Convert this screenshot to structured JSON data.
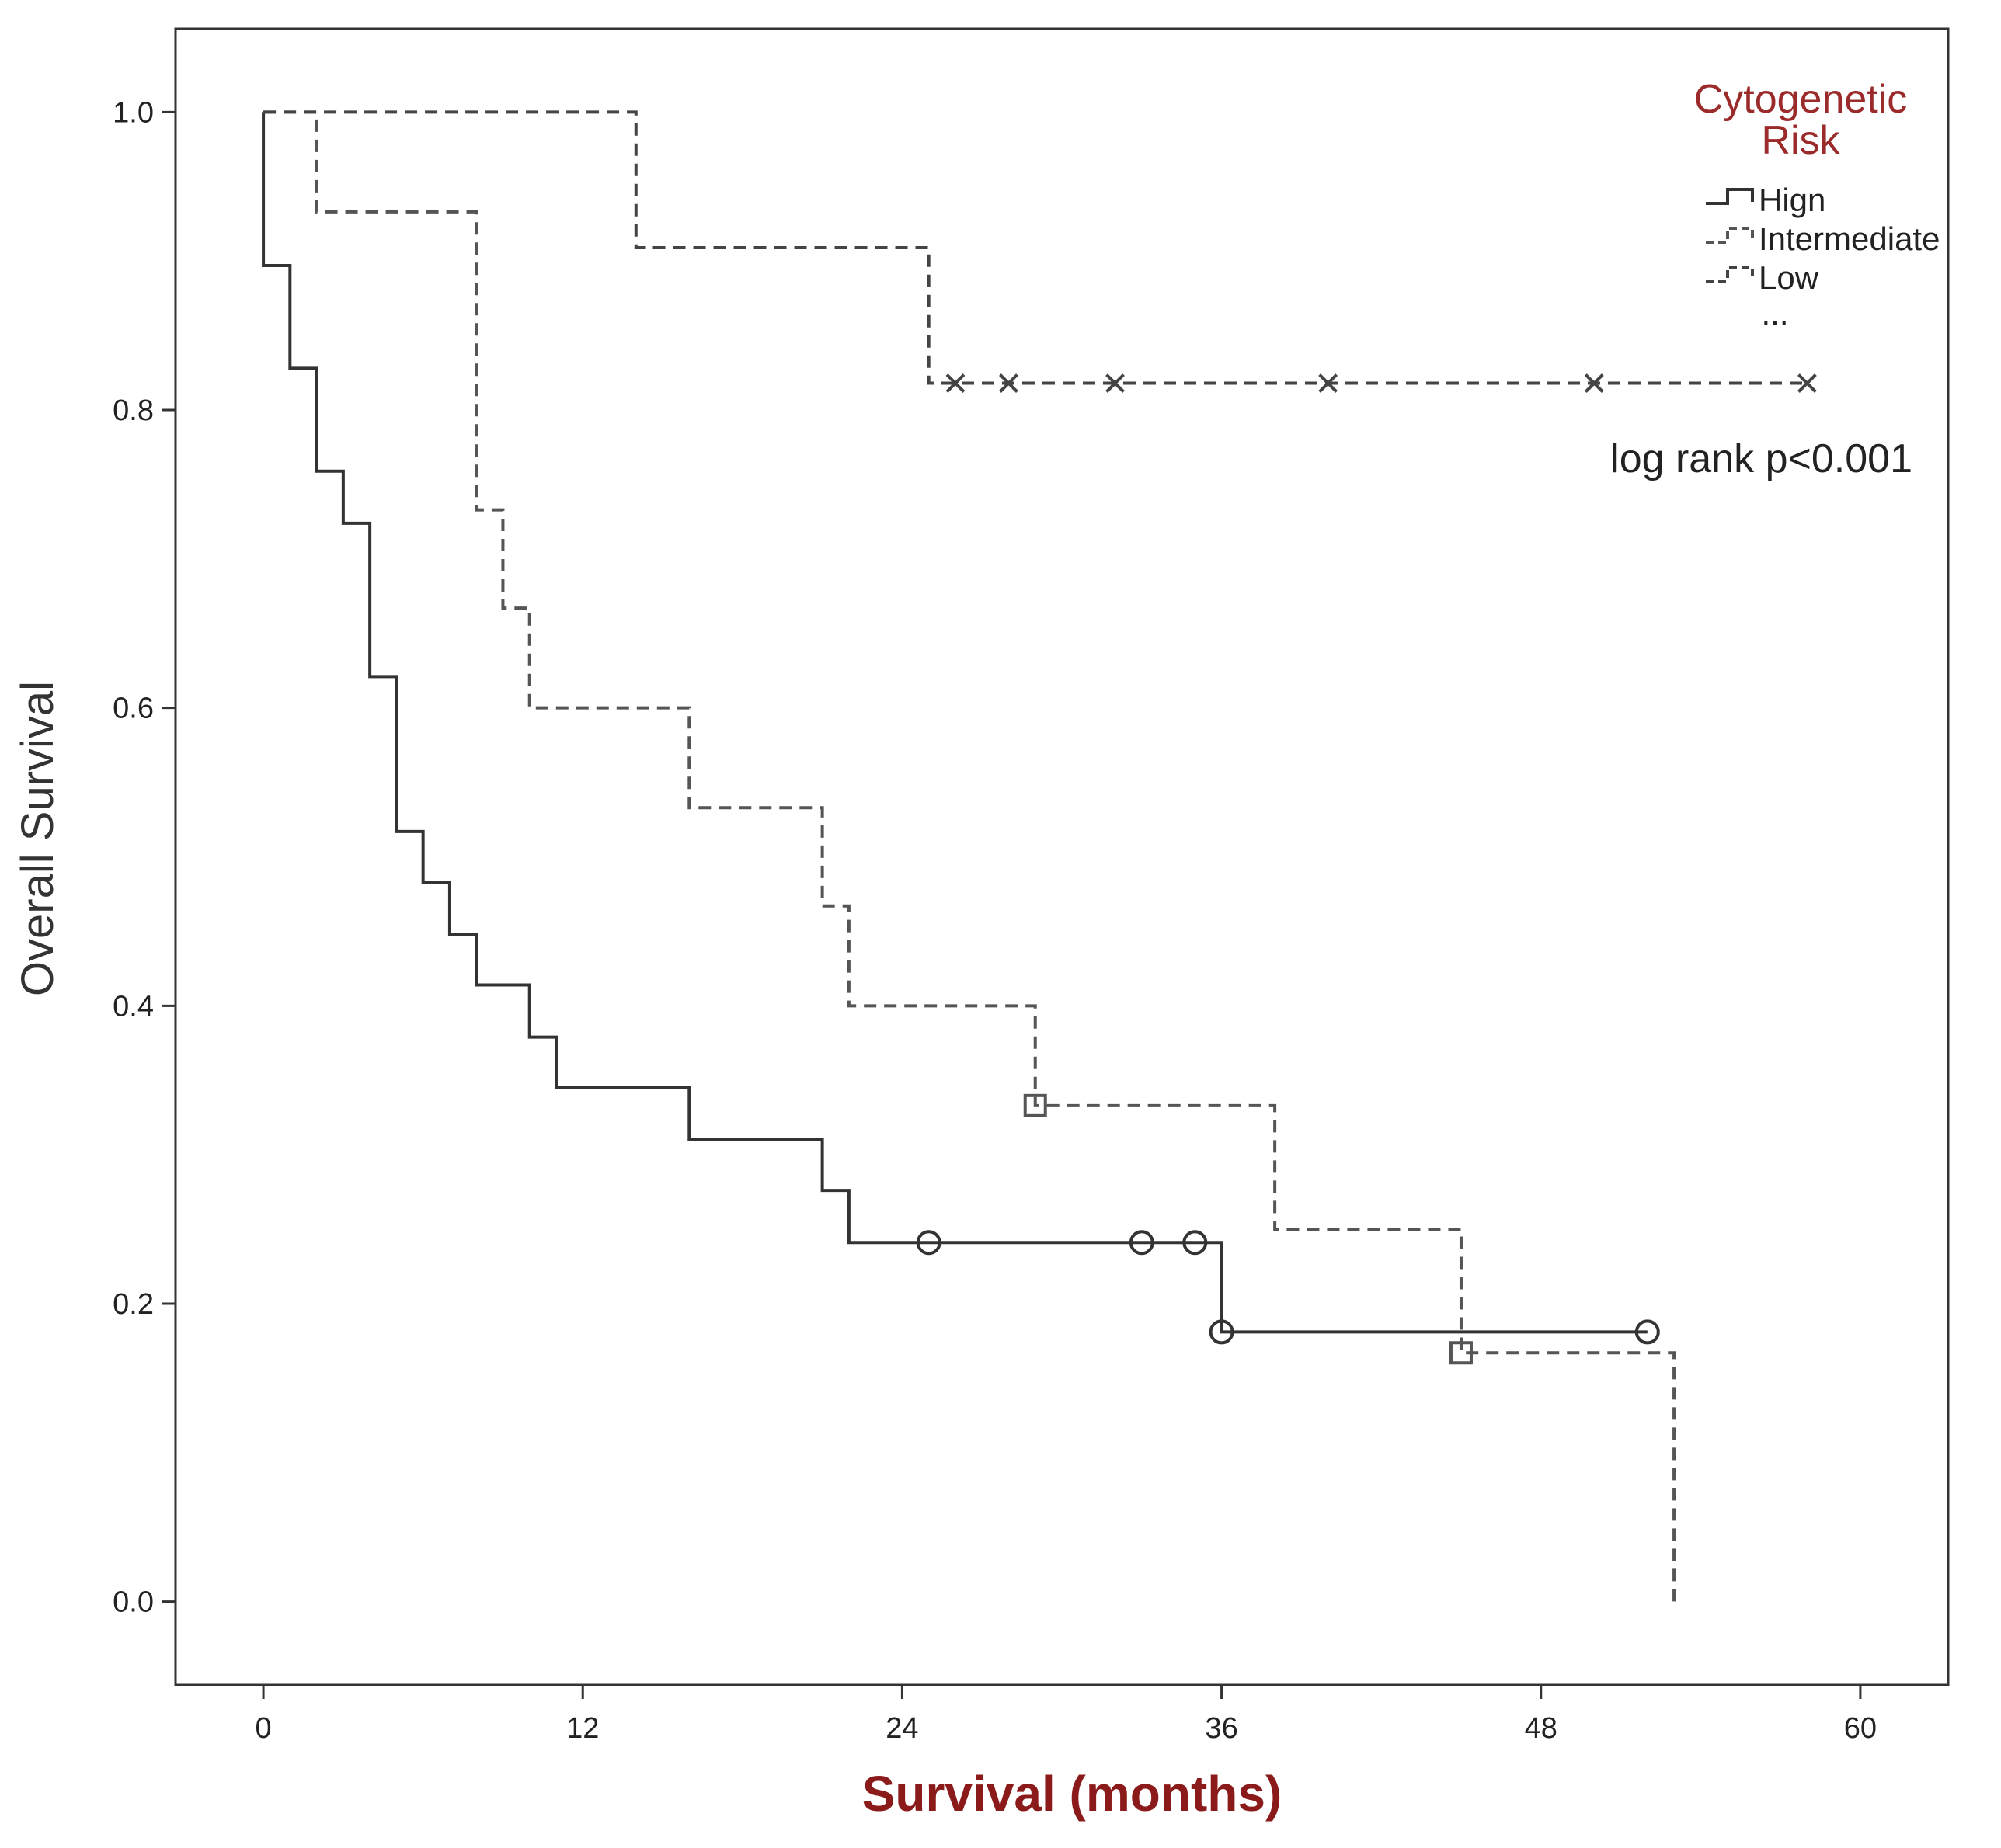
{
  "chart_data": {
    "type": "line",
    "xlabel": "Survival (months)",
    "ylabel": "Overall Survival",
    "xlim": [
      -3.3,
      63.3
    ],
    "ylim": [
      -0.056,
      1.056
    ],
    "x_ticks": [
      0,
      12,
      24,
      36,
      48,
      60
    ],
    "y_ticks": [
      0.0,
      0.2,
      0.4,
      0.6,
      0.8,
      1.0
    ],
    "x_tick_labels": [
      "0",
      "12",
      "24",
      "36",
      "48",
      "60"
    ],
    "y_tick_labels": [
      "0.0",
      "0.2",
      "0.4",
      "0.6",
      "0.8",
      "1.0"
    ],
    "grid": false,
    "legend": {
      "title_line1": "Cytogenetic",
      "title_line2": "Risk",
      "placement": "top-right",
      "extra": "..."
    },
    "annotation": "log rank p<0.001",
    "series": [
      {
        "name": "Hign",
        "style": "solid",
        "censor_marker": "circle",
        "color": "#333333",
        "steps": [
          [
            0,
            1.0
          ],
          [
            0,
            0.897
          ],
          [
            1,
            0.828
          ],
          [
            2,
            0.759
          ],
          [
            3,
            0.724
          ],
          [
            4,
            0.621
          ],
          [
            5,
            0.517
          ],
          [
            6,
            0.483
          ],
          [
            7,
            0.448
          ],
          [
            8,
            0.414
          ],
          [
            10,
            0.379
          ],
          [
            11,
            0.345
          ],
          [
            16,
            0.31
          ],
          [
            21,
            0.276
          ],
          [
            22,
            0.241
          ],
          [
            36,
            0.181
          ]
        ],
        "end_x": 52,
        "censored": [
          [
            25,
            0.241
          ],
          [
            33,
            0.241
          ],
          [
            35,
            0.241
          ],
          [
            36,
            0.181
          ],
          [
            52,
            0.181
          ]
        ]
      },
      {
        "name": "Intermediate",
        "style": "dashed",
        "censor_marker": "square",
        "color": "#555555",
        "steps": [
          [
            0,
            1.0
          ],
          [
            2,
            0.933
          ],
          [
            8,
            0.733
          ],
          [
            9,
            0.667
          ],
          [
            10,
            0.6
          ],
          [
            16,
            0.533
          ],
          [
            21,
            0.467
          ],
          [
            22,
            0.4
          ],
          [
            29,
            0.333
          ],
          [
            38,
            0.25
          ],
          [
            45,
            0.167
          ],
          [
            53,
            0.0
          ]
        ],
        "end_x": 53,
        "censored": [
          [
            29,
            0.333
          ],
          [
            45,
            0.167
          ]
        ]
      },
      {
        "name": "Low",
        "style": "dashed",
        "censor_marker": "x",
        "color": "#444444",
        "steps": [
          [
            0,
            1.0
          ],
          [
            14,
            0.909
          ],
          [
            25,
            0.818
          ]
        ],
        "end_x": 58,
        "censored": [
          [
            26,
            0.818
          ],
          [
            28,
            0.818
          ],
          [
            32,
            0.818
          ],
          [
            40,
            0.818
          ],
          [
            50,
            0.818
          ],
          [
            58,
            0.818
          ]
        ]
      }
    ]
  }
}
